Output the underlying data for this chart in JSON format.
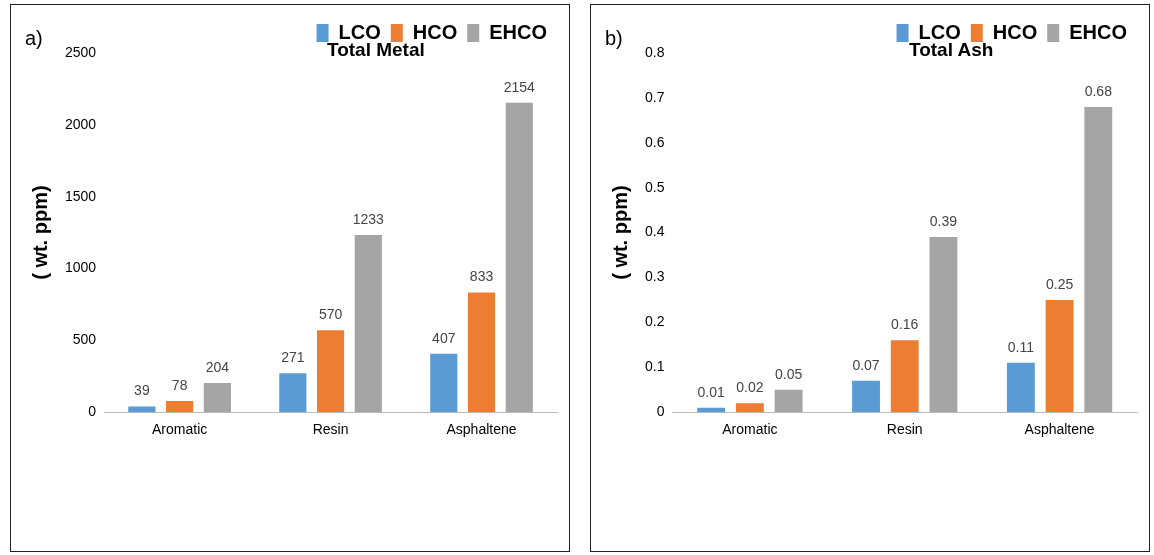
{
  "chart_data": [
    {
      "type": "bar",
      "title": "Total Metal",
      "ylabel": "( wt. ppm)",
      "annotations": [
        "a)"
      ],
      "categories": [
        "Aromatic",
        "Resin",
        "Asphaltene"
      ],
      "series": [
        {
          "name": "LCO",
          "color": "#5b9bd5",
          "values": [
            39,
            271,
            407
          ]
        },
        {
          "name": "HCO",
          "color": "#ed7d31",
          "values": [
            78,
            570,
            833
          ]
        },
        {
          "name": "EHCO",
          "color": "#a5a5a5",
          "values": [
            204,
            1233,
            2154
          ]
        }
      ],
      "ylim": [
        0,
        2500
      ],
      "yticks": [
        0,
        500,
        1000,
        1500,
        2000,
        2500
      ],
      "grid": false,
      "legend": "top right",
      "data_labels": true
    },
    {
      "type": "bar",
      "title": "Total Ash",
      "ylabel": "( wt. ppm)",
      "annotations": [
        "b)"
      ],
      "categories": [
        "Aromatic",
        "Resin",
        "Asphaltene"
      ],
      "series": [
        {
          "name": "LCO",
          "color": "#5b9bd5",
          "values": [
            0.01,
            0.07,
            0.11
          ]
        },
        {
          "name": "HCO",
          "color": "#ed7d31",
          "values": [
            0.02,
            0.16,
            0.25
          ]
        },
        {
          "name": "EHCO",
          "color": "#a5a5a5",
          "values": [
            0.05,
            0.39,
            0.68
          ]
        }
      ],
      "ylim": [
        0,
        0.8
      ],
      "yticks": [
        0,
        0.1,
        0.2,
        0.3,
        0.4,
        0.5,
        0.6,
        0.7,
        0.8
      ],
      "grid": false,
      "legend": "top right",
      "data_labels": true
    }
  ]
}
